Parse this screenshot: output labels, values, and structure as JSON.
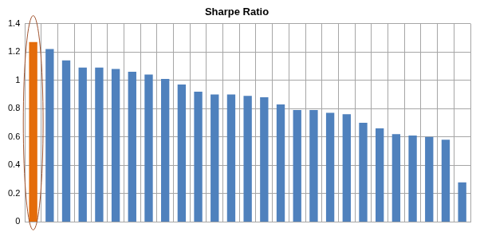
{
  "chart_data": {
    "type": "bar",
    "title": "Sharpe Ratio",
    "categories": [
      null,
      null,
      null,
      null,
      null,
      null,
      null,
      null,
      null,
      null,
      null,
      null,
      null,
      null,
      null,
      null,
      null,
      null,
      null,
      null,
      null,
      null,
      null,
      null,
      null,
      null,
      null
    ],
    "values": [
      1.27,
      1.22,
      1.14,
      1.09,
      1.09,
      1.08,
      1.06,
      1.04,
      1.01,
      0.97,
      0.92,
      0.9,
      0.9,
      0.89,
      0.88,
      0.83,
      0.79,
      0.79,
      0.77,
      0.76,
      0.7,
      0.66,
      0.62,
      0.61,
      0.6,
      0.58,
      0.28
    ],
    "colors": [
      "#e46c0a",
      "#4f81bd",
      "#4f81bd",
      "#4f81bd",
      "#4f81bd",
      "#4f81bd",
      "#4f81bd",
      "#4f81bd",
      "#4f81bd",
      "#4f81bd",
      "#4f81bd",
      "#4f81bd",
      "#4f81bd",
      "#4f81bd",
      "#4f81bd",
      "#4f81bd",
      "#4f81bd",
      "#4f81bd",
      "#4f81bd",
      "#4f81bd",
      "#4f81bd",
      "#4f81bd",
      "#4f81bd",
      "#4f81bd",
      "#4f81bd",
      "#4f81bd",
      "#4f81bd"
    ],
    "ylim": [
      0,
      1.4
    ],
    "yticks": [
      0,
      0.2,
      0.4,
      0.6,
      0.8,
      1,
      1.2,
      1.4
    ],
    "grid": true,
    "tick_labels": "y"
  }
}
